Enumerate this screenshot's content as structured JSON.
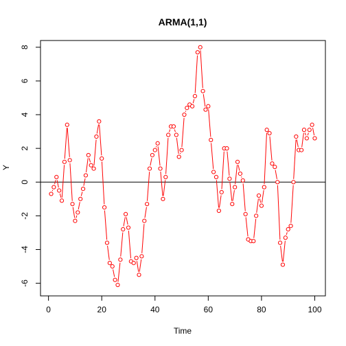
{
  "chart_data": {
    "type": "line",
    "title": "ARMA(1,1)",
    "xlabel": "Time",
    "ylabel": "Y",
    "xlim": [
      -3,
      104
    ],
    "ylim": [
      -6.75,
      8.4
    ],
    "x_ticks": [
      0,
      20,
      40,
      60,
      80,
      100
    ],
    "y_ticks": [
      -6,
      -4,
      -2,
      0,
      2,
      4,
      6,
      8
    ],
    "grid": false,
    "legend": "none",
    "hline": 0,
    "line_color": "#ff0000",
    "hline_color": "#000000",
    "series": [
      {
        "x": [
          1,
          2,
          3,
          4,
          5,
          6,
          7,
          8,
          9,
          10,
          11,
          12,
          13,
          14,
          15,
          16,
          17,
          18,
          19,
          20,
          21,
          22,
          23,
          24,
          25,
          26,
          27,
          28,
          29,
          30,
          31,
          32,
          33,
          34,
          35,
          36,
          37,
          38,
          39,
          40,
          41,
          42,
          43,
          44,
          45,
          46,
          47,
          48,
          49,
          50,
          51,
          52,
          53,
          54,
          55,
          56,
          57,
          58,
          59,
          60,
          61,
          62,
          63,
          64,
          65,
          66,
          67,
          68,
          69,
          70,
          71,
          72,
          73,
          74,
          75,
          76,
          77,
          78,
          79,
          80,
          81,
          82,
          83,
          84,
          85,
          86,
          87,
          88,
          89,
          90,
          91,
          92,
          93,
          94,
          95,
          96,
          97,
          98,
          99,
          100
        ],
        "values": [
          -0.7,
          -0.3,
          0.3,
          -0.5,
          -1.1,
          1.2,
          3.4,
          1.3,
          -1.3,
          -2.3,
          -1.8,
          -1.0,
          -0.4,
          0.4,
          1.6,
          1.0,
          0.8,
          2.7,
          3.6,
          1.4,
          -1.5,
          -3.6,
          -4.8,
          -5.0,
          -5.8,
          -6.1,
          -4.6,
          -2.8,
          -1.9,
          -2.7,
          -4.7,
          -4.8,
          -4.5,
          -5.5,
          -4.4,
          -2.3,
          -1.3,
          0.8,
          1.6,
          1.9,
          2.3,
          0.8,
          -1.0,
          0.3,
          2.8,
          3.3,
          3.3,
          2.8,
          1.5,
          1.9,
          4.0,
          4.4,
          4.6,
          4.5,
          5.1,
          7.7,
          8.0,
          5.4,
          4.3,
          4.5,
          2.5,
          0.6,
          0.3,
          -1.7,
          -0.6,
          2.0,
          2.0,
          0.2,
          -1.3,
          -0.3,
          1.2,
          0.5,
          0.1,
          -1.9,
          -3.4,
          -3.5,
          -3.5,
          -2.0,
          -0.8,
          -1.4,
          -0.3,
          3.1,
          2.9,
          1.1,
          0.9,
          0.0,
          -3.6,
          -4.9,
          -3.3,
          -2.8,
          -2.6,
          0.0,
          2.7,
          1.9,
          1.9,
          3.1,
          2.6,
          3.1,
          3.4,
          2.6
        ]
      }
    ]
  }
}
